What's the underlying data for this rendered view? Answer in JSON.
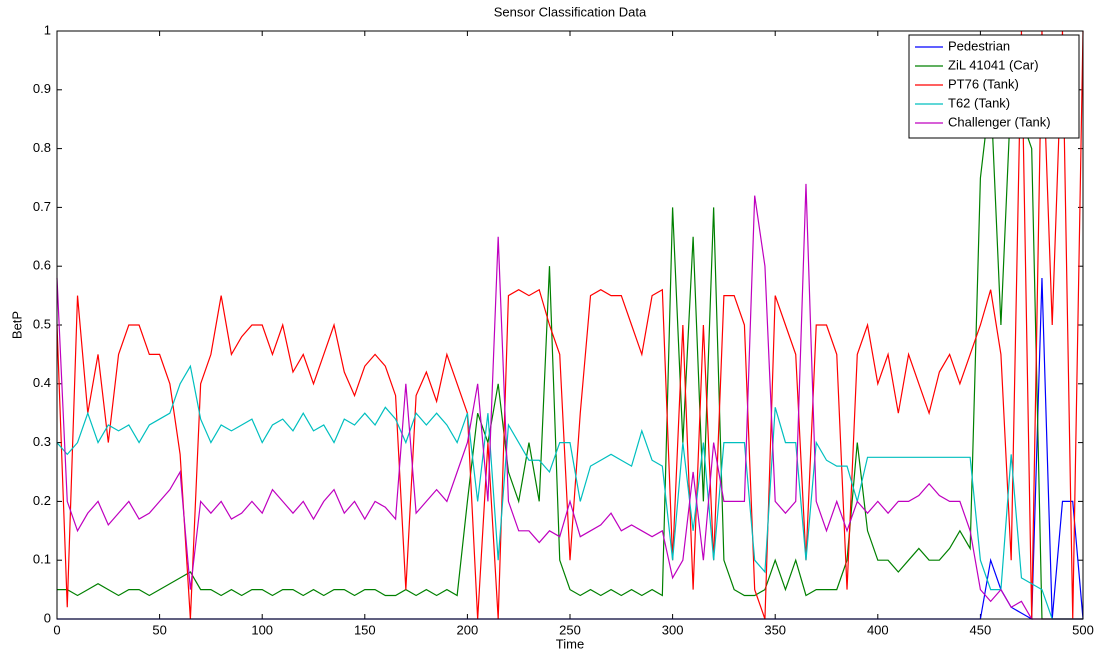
{
  "chart_data": {
    "type": "line",
    "title": "Sensor Classification Data",
    "x_label": "Time",
    "y_label": "BetP",
    "x": [
      0,
      5,
      10,
      15,
      20,
      25,
      30,
      35,
      40,
      45,
      50,
      55,
      60,
      65,
      70,
      75,
      80,
      85,
      90,
      95,
      100,
      105,
      110,
      115,
      120,
      125,
      130,
      135,
      140,
      145,
      150,
      155,
      160,
      165,
      170,
      175,
      180,
      185,
      190,
      195,
      200,
      205,
      210,
      215,
      220,
      225,
      230,
      235,
      240,
      245,
      250,
      255,
      260,
      265,
      270,
      275,
      280,
      285,
      290,
      295,
      300,
      305,
      310,
      315,
      320,
      325,
      330,
      335,
      340,
      345,
      350,
      355,
      360,
      365,
      370,
      375,
      380,
      385,
      390,
      395,
      400,
      405,
      410,
      415,
      420,
      425,
      430,
      435,
      440,
      445,
      450,
      455,
      460,
      465,
      470,
      475,
      480,
      485,
      490,
      495,
      500
    ],
    "series": [
      {
        "name": "Pedestrian",
        "color": "#0000ff",
        "values": [
          0,
          0,
          0,
          0,
          0,
          0,
          0,
          0,
          0,
          0,
          0,
          0,
          0,
          0,
          0,
          0,
          0,
          0,
          0,
          0,
          0,
          0,
          0,
          0,
          0,
          0,
          0,
          0,
          0,
          0,
          0,
          0,
          0,
          0,
          0,
          0,
          0,
          0,
          0,
          0,
          0,
          0,
          0,
          0,
          0,
          0,
          0,
          0,
          0,
          0,
          0,
          0,
          0,
          0,
          0,
          0,
          0,
          0,
          0,
          0,
          0,
          0,
          0,
          0,
          0,
          0,
          0,
          0,
          0,
          0,
          0,
          0,
          0,
          0,
          0,
          0,
          0,
          0,
          0,
          0,
          0,
          0,
          0,
          0,
          0,
          0,
          0,
          0,
          0,
          0,
          0,
          0.1,
          0.05,
          0.02,
          0.01,
          0,
          0.58,
          0,
          0.2,
          0.2,
          0
        ]
      },
      {
        "name": "ZiL 41041 (Car)",
        "color": "#008000",
        "values": [
          0.05,
          0.05,
          0.04,
          0.05,
          0.06,
          0.05,
          0.04,
          0.05,
          0.05,
          0.04,
          0.05,
          0.06,
          0.07,
          0.08,
          0.05,
          0.05,
          0.04,
          0.05,
          0.04,
          0.05,
          0.05,
          0.04,
          0.05,
          0.05,
          0.04,
          0.05,
          0.04,
          0.05,
          0.05,
          0.04,
          0.05,
          0.05,
          0.04,
          0.04,
          0.05,
          0.04,
          0.05,
          0.04,
          0.05,
          0.04,
          0.2,
          0.35,
          0.3,
          0.4,
          0.25,
          0.2,
          0.3,
          0.2,
          0.6,
          0.1,
          0.05,
          0.04,
          0.05,
          0.04,
          0.05,
          0.04,
          0.05,
          0.04,
          0.05,
          0.04,
          0.7,
          0.3,
          0.65,
          0.2,
          0.7,
          0.1,
          0.05,
          0.04,
          0.04,
          0.05,
          0.1,
          0.05,
          0.1,
          0.04,
          0.05,
          0.05,
          0.05,
          0.1,
          0.3,
          0.15,
          0.1,
          0.1,
          0.08,
          0.1,
          0.12,
          0.1,
          0.1,
          0.12,
          0.15,
          0.12,
          0.75,
          0.9,
          0.5,
          0.9,
          0.85,
          0.8,
          0,
          0,
          0,
          0,
          0
        ]
      },
      {
        "name": "PT76 (Tank)",
        "color": "#ff0000",
        "values": [
          0.5,
          0.02,
          0.55,
          0.35,
          0.45,
          0.3,
          0.45,
          0.5,
          0.5,
          0.45,
          0.45,
          0.4,
          0.28,
          0,
          0.4,
          0.45,
          0.55,
          0.45,
          0.48,
          0.5,
          0.5,
          0.45,
          0.5,
          0.42,
          0.45,
          0.4,
          0.45,
          0.5,
          0.42,
          0.38,
          0.43,
          0.45,
          0.43,
          0.38,
          0.05,
          0.38,
          0.42,
          0.37,
          0.45,
          0.4,
          0.35,
          0,
          0.3,
          0,
          0.55,
          0.56,
          0.55,
          0.56,
          0.5,
          0.45,
          0.1,
          0.35,
          0.55,
          0.56,
          0.55,
          0.55,
          0.5,
          0.45,
          0.55,
          0.56,
          0.1,
          0.5,
          0.05,
          0.5,
          0.1,
          0.55,
          0.55,
          0.5,
          0.05,
          0,
          0.55,
          0.5,
          0.45,
          0.1,
          0.5,
          0.5,
          0.45,
          0.05,
          0.45,
          0.5,
          0.4,
          0.45,
          0.35,
          0.45,
          0.4,
          0.35,
          0.42,
          0.45,
          0.4,
          0.45,
          0.5,
          0.56,
          0.45,
          0.1,
          1,
          0,
          1,
          0.5,
          1,
          0,
          1
        ]
      },
      {
        "name": "T62 (Tank)",
        "color": "#00bfbf",
        "values": [
          0.3,
          0.28,
          0.3,
          0.35,
          0.3,
          0.33,
          0.32,
          0.33,
          0.3,
          0.33,
          0.34,
          0.35,
          0.4,
          0.43,
          0.34,
          0.3,
          0.33,
          0.32,
          0.33,
          0.34,
          0.3,
          0.33,
          0.34,
          0.32,
          0.35,
          0.32,
          0.33,
          0.3,
          0.34,
          0.33,
          0.35,
          0.33,
          0.36,
          0.34,
          0.3,
          0.35,
          0.33,
          0.35,
          0.33,
          0.3,
          0.35,
          0.2,
          0.35,
          0.1,
          0.33,
          0.3,
          0.27,
          0.27,
          0.25,
          0.3,
          0.3,
          0.2,
          0.26,
          0.27,
          0.28,
          0.27,
          0.26,
          0.32,
          0.27,
          0.26,
          0.1,
          0.3,
          0.15,
          0.3,
          0.1,
          0.3,
          0.3,
          0.3,
          0.1,
          0.08,
          0.36,
          0.3,
          0.3,
          0.1,
          0.3,
          0.27,
          0.26,
          0.26,
          0.2,
          0.275,
          0.275,
          0.275,
          0.275,
          0.275,
          0.275,
          0.275,
          0.275,
          0.275,
          0.275,
          0.275,
          0.1,
          0.05,
          0.05,
          0.28,
          0.07,
          0.06,
          0.05,
          0,
          0,
          0,
          0
        ]
      },
      {
        "name": "Challenger (Tank)",
        "color": "#bf00bf",
        "values": [
          0.58,
          0.2,
          0.15,
          0.18,
          0.2,
          0.16,
          0.18,
          0.2,
          0.17,
          0.18,
          0.2,
          0.22,
          0.25,
          0.05,
          0.2,
          0.18,
          0.2,
          0.17,
          0.18,
          0.2,
          0.18,
          0.22,
          0.2,
          0.18,
          0.2,
          0.17,
          0.2,
          0.22,
          0.18,
          0.2,
          0.17,
          0.2,
          0.19,
          0.17,
          0.4,
          0.18,
          0.2,
          0.22,
          0.2,
          0.25,
          0.3,
          0.4,
          0.2,
          0.65,
          0.2,
          0.15,
          0.15,
          0.13,
          0.15,
          0.14,
          0.2,
          0.14,
          0.15,
          0.16,
          0.18,
          0.15,
          0.16,
          0.15,
          0.14,
          0.15,
          0.07,
          0.1,
          0.25,
          0.1,
          0.3,
          0.2,
          0.2,
          0.2,
          0.72,
          0.6,
          0.2,
          0.18,
          0.2,
          0.74,
          0.2,
          0.15,
          0.2,
          0.15,
          0.2,
          0.18,
          0.2,
          0.18,
          0.2,
          0.2,
          0.21,
          0.23,
          0.21,
          0.2,
          0.2,
          0.15,
          0.05,
          0.03,
          0.05,
          0.02,
          0.03,
          0,
          0,
          0,
          0,
          0,
          0
        ]
      }
    ],
    "xlim": [
      0,
      500
    ],
    "xticks": [
      0,
      50,
      100,
      150,
      200,
      250,
      300,
      350,
      400,
      450,
      500
    ],
    "ylim": [
      0,
      1
    ],
    "yticks": [
      0,
      0.1,
      0.2,
      0.3,
      0.4,
      0.5,
      0.6,
      0.7,
      0.8,
      0.9,
      1
    ],
    "grid": false,
    "legend": "top-right"
  }
}
